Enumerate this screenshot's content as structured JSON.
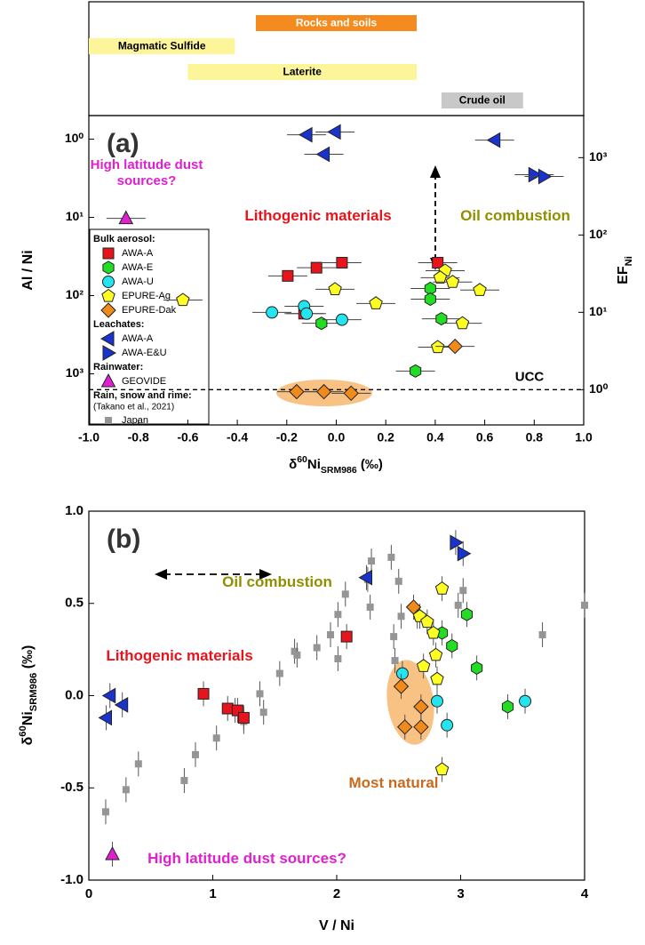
{
  "chart_data": [
    {
      "type": "scatter",
      "panel_label": "(a)",
      "x_label": {
        "prefix": "δ",
        "sup": "60",
        "main": "Ni",
        "sub": "SRM986",
        "suffix": " (‰)"
      },
      "y_label": "Al / Ni",
      "y2_label": {
        "main": "EF",
        "sub": "Ni"
      },
      "xlim": [
        -1,
        1
      ],
      "xticks": [
        {
          "value": -1,
          "label": "-1.0"
        },
        {
          "value": -0.8,
          "label": "-0.8"
        },
        {
          "value": -0.6,
          "label": "-0.6"
        },
        {
          "value": -0.4,
          "label": "-0.4"
        },
        {
          "value": -0.2,
          "label": "-0.2"
        },
        {
          "value": 0,
          "label": "0.0"
        },
        {
          "value": 0.2,
          "label": "0.2"
        },
        {
          "value": 0.4,
          "label": "0.4"
        },
        {
          "value": 0.6,
          "label": "0.6"
        },
        {
          "value": 0.8,
          "label": "0.8"
        },
        {
          "value": 1,
          "label": "1.0"
        }
      ],
      "ylim": [
        0.5,
        4500
      ],
      "ylog": true,
      "y_reversed": true,
      "yticks": [
        {
          "value": 1,
          "label": "10⁰"
        },
        {
          "value": 10,
          "label": "10¹"
        },
        {
          "value": 100,
          "label": "10²"
        },
        {
          "value": 1000,
          "label": "10³"
        }
      ],
      "y2lim": [
        0.35,
        3500
      ],
      "y2log": true,
      "y2ticks": [
        {
          "value": 1,
          "label": "10⁰"
        },
        {
          "value": 10,
          "label": "10¹"
        },
        {
          "value": 100,
          "label": "10²"
        },
        {
          "value": 1000,
          "label": "10³"
        }
      ],
      "ranges": [
        {
          "label": "Rocks and soils",
          "start": -0.325,
          "end": 0.325,
          "color": "#f58a1f"
        },
        {
          "label": "Magmatic Sulfide",
          "start": -1.0,
          "end": -0.41,
          "color": "#fdf59a"
        },
        {
          "label": "Laterite",
          "start": -0.6,
          "end": 0.325,
          "color": "#fdf59a"
        },
        {
          "label": "Crude  oil",
          "start": 0.425,
          "end": 0.755,
          "color": "#c8c8c8"
        }
      ],
      "reference_line": {
        "y2": 1,
        "label": "UCC"
      },
      "annotations": [
        "High latitude dust sources?",
        "Lithogenic materials",
        "Oil combustion"
      ],
      "legend_groups": [
        {
          "title": "Bulk aerosol:",
          "series": [
            {
              "name": "AWA-A",
              "marker": "square",
              "color": "#e8141b",
              "x": [
                -0.196,
                -0.08,
                0.023,
                0.41,
                -0.13
              ],
              "values": [
                56,
                44,
                38,
                38,
                170
              ]
            },
            {
              "name": "AWA-E",
              "marker": "hexagon",
              "color": "#22dd22",
              "x": [
                0.38,
                0.425,
                0.38,
                -0.06,
                0.32
              ],
              "values": [
                81,
                198,
                111,
                226,
                920
              ]
            },
            {
              "name": "AWA-U",
              "marker": "circle",
              "color": "#22e5f0",
              "x": [
                -0.26,
                -0.13,
                -0.12,
                0.023
              ],
              "values": [
                164,
                137,
                170,
                203
              ]
            },
            {
              "name": "EPURE-Ag",
              "marker": "pentagon",
              "color": "#ffff22",
              "x": [
                -0.62,
                -0.005,
                0.16,
                0.44,
                0.42,
                0.47,
                0.58,
                0.41,
                0.51
              ],
              "values": [
                114,
                83,
                126,
                48,
                59,
                67,
                85,
                456,
                226
              ]
            },
            {
              "name": "EPURE-Dak",
              "marker": "diamond",
              "color": "#f08a1a",
              "x": [
                0.48,
                -0.16,
                -0.05,
                0.06
              ],
              "values": [
                445,
                1690,
                1690,
                1770
              ]
            }
          ]
        },
        {
          "title": "Leachates:",
          "series": [
            {
              "name": "AWA-A",
              "marker": "triangle-left",
              "color": "#1a33cc",
              "x": [
                -0.12,
                -0.005,
                -0.05,
                0.64
              ],
              "values": [
                0.88,
                0.81,
                1.56,
                1.03
              ]
            },
            {
              "name": "AWA-E&U",
              "marker": "triangle-right",
              "color": "#1a33cc",
              "x": [
                0.8,
                0.84
              ],
              "values": [
                2.85,
                3.0
              ]
            }
          ]
        },
        {
          "title": "Rainwater:",
          "series": [
            {
              "name": "GEOVIDE",
              "marker": "triangle-up",
              "color": "#e020d0",
              "x": [
                -0.85
              ],
              "values": [
                10.3
              ]
            }
          ]
        },
        {
          "title": "Rain, snow and rime:",
          "note": "(Takano et al., 2021)",
          "series": [
            {
              "name": "Japan",
              "marker": "small-square",
              "color": "#959595",
              "x": [],
              "values": []
            }
          ]
        }
      ]
    },
    {
      "type": "scatter",
      "panel_label": "(b)",
      "x_label": "V / Ni",
      "y_label": {
        "prefix": "δ",
        "sup": "60",
        "main": "Ni",
        "sub": "SRM986",
        "suffix": " (‰)"
      },
      "xlim": [
        0,
        4
      ],
      "xticks": [
        0,
        1,
        2,
        3,
        4
      ],
      "ylim": [
        -1,
        1
      ],
      "yticks": [
        {
          "value": -1,
          "label": "-1.0"
        },
        {
          "value": -0.5,
          "label": "-0.5"
        },
        {
          "value": 0,
          "label": "0.0"
        },
        {
          "value": 0.5,
          "label": "0.5"
        },
        {
          "value": 1,
          "label": "1.0"
        }
      ],
      "annotations": [
        "Oil combustion",
        "Lithogenic materials",
        "Most natural",
        "High latitude dust sources?"
      ],
      "series": [
        {
          "marker": "small-square",
          "color": "#959595",
          "x": [
            0.136,
            0.3,
            0.4,
            0.77,
            0.86,
            1.03,
            1.18,
            1.25,
            1.38,
            1.41,
            1.54,
            1.66,
            1.68,
            1.84,
            1.95,
            2.01,
            2.01,
            2.07,
            2.25,
            2.28,
            2.27,
            2.44,
            2.46,
            2.47,
            2.5,
            2.52,
            2.65,
            2.98,
            3.02,
            3.66,
            4.0
          ],
          "values": [
            -0.63,
            -0.51,
            -0.37,
            -0.46,
            -0.32,
            -0.23,
            -0.08,
            -0.14,
            0.01,
            -0.09,
            0.12,
            0.24,
            0.22,
            0.26,
            0.33,
            0.2,
            0.44,
            0.55,
            0.63,
            0.73,
            0.48,
            0.75,
            0.32,
            0.19,
            0.62,
            0.43,
            0.43,
            0.49,
            0.57,
            0.33,
            0.49
          ]
        },
        {
          "marker": "square",
          "color": "#e8141b",
          "x": [
            0.925,
            1.12,
            1.2,
            1.25,
            2.08
          ],
          "values": [
            0.01,
            -0.07,
            -0.08,
            -0.12,
            0.32
          ]
        },
        {
          "marker": "hexagon",
          "color": "#22dd22",
          "x": [
            2.85,
            3.05,
            2.93,
            3.13,
            3.38
          ],
          "values": [
            0.34,
            0.44,
            0.27,
            0.15,
            -0.06
          ]
        },
        {
          "marker": "circle",
          "color": "#22e5f0",
          "x": [
            2.53,
            2.81,
            2.89,
            3.52
          ],
          "values": [
            0.12,
            -0.03,
            -0.16,
            -0.03
          ]
        },
        {
          "marker": "pentagon",
          "color": "#ffff22",
          "x": [
            2.67,
            2.73,
            2.78,
            2.85,
            2.8,
            2.7,
            2.81,
            2.85
          ],
          "values": [
            0.43,
            0.4,
            0.34,
            0.58,
            0.22,
            0.16,
            0.09,
            -0.4
          ]
        },
        {
          "marker": "diamond",
          "color": "#f08a1a",
          "x": [
            2.62,
            2.52,
            2.68,
            2.55,
            2.68
          ],
          "values": [
            0.48,
            0.05,
            -0.06,
            -0.17,
            -0.17
          ]
        },
        {
          "marker": "triangle-left",
          "color": "#1a33cc",
          "x": [
            0.17,
            0.14,
            0.27,
            2.24
          ],
          "values": [
            0.0,
            -0.12,
            -0.05,
            0.64
          ]
        },
        {
          "marker": "triangle-right",
          "color": "#1a33cc",
          "x": [
            2.96,
            3.02
          ],
          "values": [
            0.83,
            0.77
          ]
        },
        {
          "marker": "triangle-up",
          "color": "#e020d0",
          "x": [
            0.19
          ],
          "values": [
            -0.86
          ]
        }
      ]
    }
  ]
}
